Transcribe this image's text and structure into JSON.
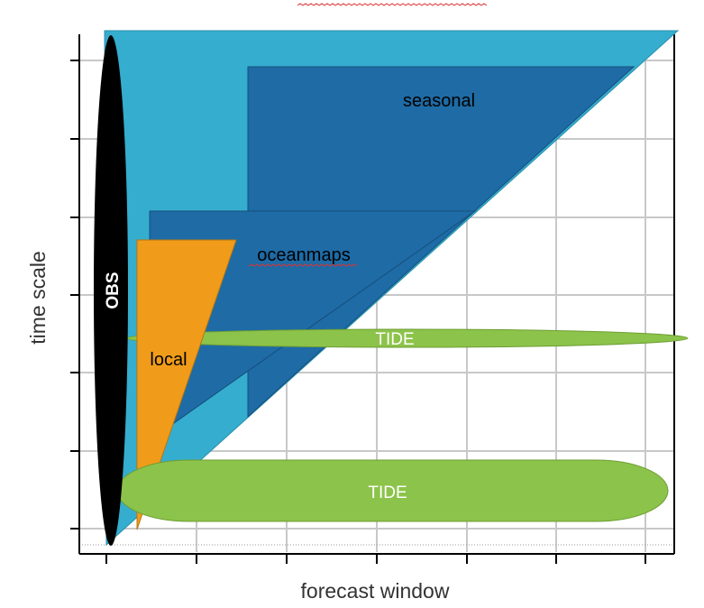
{
  "diagram": {
    "x_axis_label": "forecast window",
    "y_axis_label": "time scale",
    "regions": {
      "seasonal": "seasonal",
      "oceanmaps": "oceanmaps",
      "local": "local",
      "obs": "OBS",
      "tide_upper": "TIDE",
      "tide_lower": "TIDE"
    },
    "colors": {
      "overall_triangle": "#35ADCE",
      "seasonal": "#1E6BA6",
      "oceanmaps": "#1E6BA6",
      "local": "#F09C1A",
      "obs": "#000000",
      "tide": "#8CC34A",
      "grid": "#C8C8C8",
      "axis": "#000000"
    }
  }
}
